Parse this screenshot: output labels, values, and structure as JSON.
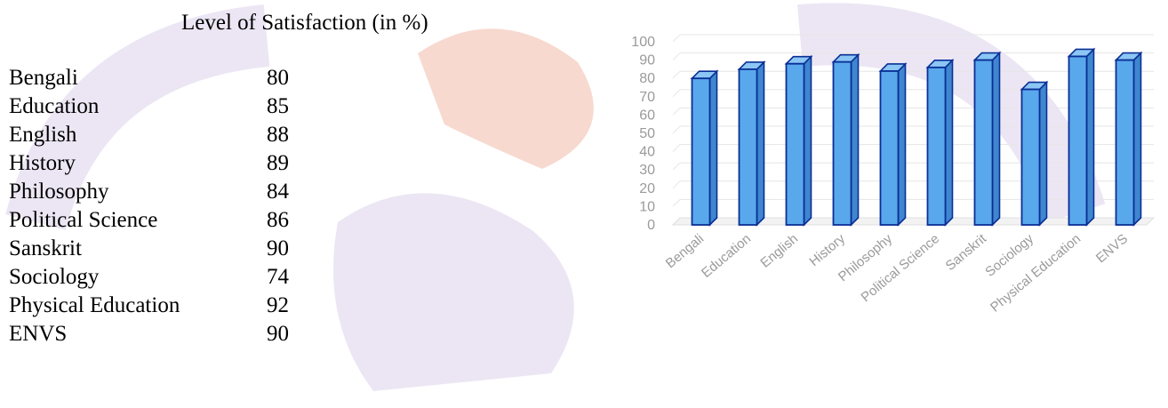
{
  "table": {
    "title": "Level of Satisfaction (in %)",
    "rows": [
      {
        "subject": "Bengali",
        "value": "80"
      },
      {
        "subject": "Education",
        "value": "85"
      },
      {
        "subject": "English",
        "value": "88"
      },
      {
        "subject": "History",
        "value": "89"
      },
      {
        "subject": "Philosophy",
        "value": "84"
      },
      {
        "subject": "Political Science",
        "value": "86"
      },
      {
        "subject": "Sanskrit",
        "value": "90"
      },
      {
        "subject": "Sociology",
        "value": "74"
      },
      {
        "subject": "Physical Education",
        "value": "92"
      },
      {
        "subject": "ENVS",
        "value": "90"
      }
    ]
  },
  "chart_data": {
    "type": "bar",
    "categories": [
      "Bengali",
      "Education",
      "English",
      "History",
      "Philosophy",
      "Political Science",
      "Sanskrit",
      "Sociology",
      "Physical Education",
      "ENVS"
    ],
    "values": [
      80,
      85,
      88,
      89,
      84,
      86,
      90,
      74,
      92,
      90
    ],
    "ylim": [
      0,
      100
    ],
    "yticks": [
      0,
      10,
      20,
      30,
      40,
      50,
      60,
      70,
      80,
      90,
      100
    ],
    "title": "",
    "xlabel": "",
    "ylabel": "",
    "grid": true,
    "bar_color": "#5aa8ec",
    "bar_edge_color": "#0a2f96",
    "tick_color": "#9a9a9a"
  },
  "colors": {
    "watermark_purple": "#ece6f4",
    "watermark_red": "#f7d9cf"
  }
}
